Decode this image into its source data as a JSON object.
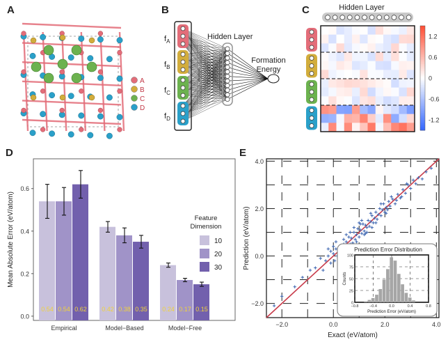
{
  "panels": {
    "a": "A",
    "b": "B",
    "c": "C",
    "d": "D",
    "e": "E"
  },
  "colors": {
    "site_a": "#e36d79",
    "site_b": "#d2ad3c",
    "site_c": "#6cb24f",
    "site_d": "#2aa0c9",
    "bar_dim10": "#c8c1dc",
    "bar_dim20": "#a093c8",
    "bar_dim30": "#7260ad",
    "scatter_point": "#3b64b0",
    "fit_line": "#c83c4b"
  },
  "panel_a": {
    "legend": [
      {
        "label": "A",
        "color": "#e36d79"
      },
      {
        "label": "B",
        "color": "#d2ad3c"
      },
      {
        "label": "C",
        "color": "#6cb24f"
      },
      {
        "label": "D",
        "color": "#2aa0c9"
      }
    ]
  },
  "panel_b": {
    "features": [
      {
        "label": "f",
        "sub": "A",
        "color": "#e36d79"
      },
      {
        "label": "f",
        "sub": "B",
        "color": "#d2ad3c"
      },
      {
        "label": "f",
        "sub": "C",
        "color": "#6cb24f"
      },
      {
        "label": "f",
        "sub": "D",
        "color": "#2aa0c9"
      }
    ],
    "hidden_label": "Hidden Layer",
    "output_line1": "Formation",
    "output_line2": "Energy"
  },
  "panel_c": {
    "title": "Hidden Layer",
    "colorbar_ticks": [
      "1.2",
      "0.6",
      "0",
      "-0.6",
      "-1.2"
    ],
    "colorbar_range": [
      -1.5,
      1.5
    ]
  },
  "chart_data": [
    {
      "type": "bar",
      "ylabel": "Mean Absolute Error (eV/atom)",
      "categories": [
        "Empirical",
        "Model−Based",
        "Model−Free"
      ],
      "series": [
        {
          "name": "10",
          "values": [
            0.54,
            0.42,
            0.24
          ],
          "errors": [
            0.08,
            0.025,
            0.01
          ]
        },
        {
          "name": "20",
          "values": [
            0.54,
            0.38,
            0.17
          ],
          "errors": [
            0.065,
            0.035,
            0.008
          ]
        },
        {
          "name": "30",
          "values": [
            0.62,
            0.35,
            0.15
          ],
          "errors": [
            0.065,
            0.03,
            0.01
          ]
        }
      ],
      "value_labels": [
        [
          "0.54",
          "0.54",
          "0.62"
        ],
        [
          "0.42",
          "0.38",
          "0.35"
        ],
        [
          "0.24",
          "0.17",
          "0.15"
        ]
      ],
      "ylim": [
        -0.02,
        0.74
      ],
      "yticks": [
        "0.0",
        "0.2",
        "0.4",
        "0.6"
      ],
      "legend_title_line1": "Feature",
      "legend_title_line2": "Dimension",
      "legend_labels": [
        "10",
        "20",
        "30"
      ]
    },
    {
      "type": "scatter",
      "xlabel": "Exact (eV/atom)",
      "ylabel": "Prediction (eV/atom)",
      "xlim": [
        -2.6,
        4.1
      ],
      "ylim": [
        -2.6,
        4.1
      ],
      "xticks": [
        "−2.0",
        "0.0",
        "2.0",
        "4.0"
      ],
      "yticks": [
        "−2.0",
        "0.0",
        "2.0",
        "4.0"
      ],
      "fit_line": [
        [
          -2.6,
          -2.6
        ],
        [
          4.1,
          4.1
        ]
      ],
      "points": [
        [
          -2.3,
          -2.1
        ],
        [
          -2.0,
          -1.7
        ],
        [
          -1.5,
          -1.3
        ],
        [
          -1.2,
          -0.9
        ],
        [
          -0.9,
          -0.6
        ],
        [
          -0.7,
          -0.5
        ],
        [
          -0.5,
          -0.1
        ],
        [
          -0.4,
          -0.6
        ],
        [
          -0.3,
          -0.2
        ],
        [
          -0.2,
          0.0
        ],
        [
          -0.1,
          -0.3
        ],
        [
          0.0,
          0.1
        ],
        [
          0.05,
          -0.2
        ],
        [
          0.1,
          0.3
        ],
        [
          0.15,
          0.0
        ],
        [
          0.2,
          0.25
        ],
        [
          0.25,
          0.1
        ],
        [
          0.3,
          0.45
        ],
        [
          0.35,
          0.15
        ],
        [
          0.4,
          0.5
        ],
        [
          0.45,
          0.3
        ],
        [
          0.5,
          0.6
        ],
        [
          0.55,
          0.35
        ],
        [
          0.6,
          0.8
        ],
        [
          0.65,
          0.5
        ],
        [
          0.7,
          0.75
        ],
        [
          0.75,
          0.55
        ],
        [
          0.8,
          1.0
        ],
        [
          0.85,
          0.7
        ],
        [
          0.9,
          0.9
        ],
        [
          0.95,
          1.15
        ],
        [
          1.0,
          0.8
        ],
        [
          1.05,
          1.1
        ],
        [
          1.1,
          0.95
        ],
        [
          1.15,
          1.35
        ],
        [
          1.2,
          1.05
        ],
        [
          1.25,
          1.3
        ],
        [
          1.3,
          1.2
        ],
        [
          1.35,
          1.5
        ],
        [
          1.4,
          1.25
        ],
        [
          1.45,
          1.45
        ],
        [
          1.5,
          1.7
        ],
        [
          1.55,
          1.4
        ],
        [
          1.6,
          1.6
        ],
        [
          1.65,
          1.85
        ],
        [
          1.7,
          1.55
        ],
        [
          1.75,
          1.75
        ],
        [
          1.8,
          2.0
        ],
        [
          1.85,
          1.7
        ],
        [
          1.9,
          1.95
        ],
        [
          1.95,
          2.2
        ],
        [
          2.0,
          1.85
        ],
        [
          2.05,
          2.05
        ],
        [
          2.1,
          1.95
        ],
        [
          2.15,
          2.3
        ],
        [
          2.2,
          2.1
        ],
        [
          2.3,
          2.4
        ],
        [
          2.4,
          2.2
        ],
        [
          2.5,
          2.6
        ],
        [
          2.6,
          2.45
        ],
        [
          2.7,
          2.8
        ],
        [
          2.8,
          2.65
        ],
        [
          2.9,
          3.0
        ],
        [
          3.0,
          2.85
        ],
        [
          3.1,
          3.2
        ],
        [
          3.2,
          3.05
        ],
        [
          3.3,
          3.3
        ],
        [
          3.45,
          3.25
        ],
        [
          3.6,
          3.55
        ],
        [
          3.8,
          3.7
        ],
        [
          0.2,
          -0.1
        ],
        [
          0.4,
          0.7
        ],
        [
          0.6,
          0.3
        ],
        [
          0.8,
          1.2
        ],
        [
          1.0,
          1.4
        ],
        [
          1.2,
          0.9
        ],
        [
          0.0,
          0.4
        ],
        [
          -0.2,
          0.3
        ],
        [
          0.3,
          -0.1
        ],
        [
          0.5,
          0.9
        ],
        [
          0.7,
          0.4
        ],
        [
          0.9,
          0.6
        ],
        [
          1.1,
          1.5
        ],
        [
          1.3,
          1.0
        ],
        [
          1.5,
          1.2
        ],
        [
          0.1,
          0.6
        ],
        [
          -0.1,
          0.2
        ],
        [
          0.45,
          0.05
        ],
        [
          0.65,
          1.0
        ],
        [
          0.85,
          0.45
        ],
        [
          1.05,
          1.35
        ],
        [
          1.25,
          0.95
        ],
        [
          1.45,
          1.8
        ],
        [
          1.65,
          1.4
        ],
        [
          1.85,
          2.2
        ],
        [
          2.05,
          1.8
        ],
        [
          2.25,
          2.5
        ],
        [
          2.45,
          2.35
        ],
        [
          2.65,
          2.5
        ],
        [
          2.85,
          3.05
        ]
      ]
    },
    {
      "type": "histogram",
      "title": "Prediction Error Distribution",
      "xlabel": "Prediction Error (eV/atom)",
      "ylabel": "Counts",
      "xlim": [
        -0.8,
        0.8
      ],
      "ylim": [
        0,
        100
      ],
      "xticks": [
        "−0.8",
        "−0.4",
        "0.0",
        "0.4",
        "0.8"
      ],
      "yticks": [
        "0",
        "25",
        "50",
        "75",
        "100"
      ],
      "bins": [
        -0.56,
        -0.48,
        -0.4,
        -0.32,
        -0.24,
        -0.16,
        -0.08,
        0.0,
        0.08,
        0.16,
        0.24,
        0.32,
        0.4,
        0.48
      ],
      "counts": [
        2,
        5,
        9,
        16,
        28,
        48,
        70,
        95,
        88,
        60,
        38,
        20,
        10,
        4
      ]
    }
  ]
}
